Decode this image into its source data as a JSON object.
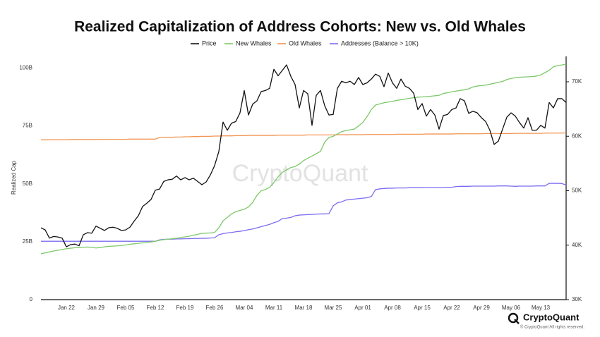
{
  "chart_data": {
    "type": "line",
    "title": "Realized Capitalization of Address Cohorts: New vs. Old Whales",
    "y_label": "Realized Cap",
    "watermark": "CryptoQuant",
    "brand": "CryptoQuant",
    "copyright": "© CryptoQuant All rights reserved.",
    "categories": [
      null,
      null,
      null,
      null,
      null,
      null,
      "Jan 22",
      null,
      null,
      null,
      null,
      null,
      null,
      "Jan 29",
      null,
      null,
      null,
      null,
      null,
      null,
      "Feb 05",
      null,
      null,
      null,
      null,
      null,
      null,
      "Feb 12",
      null,
      null,
      null,
      null,
      null,
      null,
      "Feb 19",
      null,
      null,
      null,
      null,
      null,
      null,
      "Feb 26",
      null,
      null,
      null,
      null,
      null,
      null,
      "Mar 04",
      null,
      null,
      null,
      null,
      null,
      null,
      "Mar 11",
      null,
      null,
      null,
      null,
      null,
      null,
      "Mar 18",
      null,
      null,
      null,
      null,
      null,
      null,
      "Mar 25",
      null,
      null,
      null,
      null,
      null,
      null,
      "Apr 01",
      null,
      null,
      null,
      null,
      null,
      null,
      "Apr 08",
      null,
      null,
      null,
      null,
      null,
      null,
      "Apr 15",
      null,
      null,
      null,
      null,
      null,
      null,
      "Apr 22",
      null,
      null,
      null,
      null,
      null,
      null,
      "Apr 29",
      null,
      null,
      null,
      null,
      null,
      null,
      "May 06",
      null,
      null,
      null,
      null,
      null,
      null,
      "May 13",
      null,
      null,
      null,
      null,
      null,
      null
    ],
    "ylim": [
      0,
      105
    ],
    "yticks": [
      0,
      {
        "value": 25,
        "label": "25B"
      },
      {
        "value": 50,
        "label": "50B"
      },
      {
        "value": 75,
        "label": "75B"
      },
      {
        "value": 100,
        "label": "100B"
      }
    ],
    "y2lim": [
      30000,
      74660
    ],
    "y2ticks": [
      {
        "value": 30000,
        "label": "30K"
      },
      {
        "value": 40000,
        "label": "40K"
      },
      {
        "value": 50000,
        "label": "50K"
      },
      {
        "value": 60000,
        "label": "60K"
      },
      {
        "value": 70000,
        "label": "70K"
      }
    ],
    "series": [
      {
        "name": "Price",
        "color": "#111111",
        "axis": "y2",
        "values": [
          43200,
          42800,
          41300,
          41600,
          41500,
          41300,
          39700,
          40100,
          40200,
          39900,
          41900,
          42300,
          42200,
          43500,
          43100,
          42700,
          43200,
          43300,
          43100,
          42700,
          42800,
          43300,
          44400,
          45400,
          47100,
          47700,
          48400,
          50100,
          50300,
          51700,
          52000,
          52100,
          52700,
          52000,
          52400,
          52000,
          52300,
          51700,
          51100,
          51600,
          52900,
          54600,
          57200,
          62600,
          61100,
          62400,
          62700,
          64300,
          68400,
          63900,
          65900,
          66500,
          68200,
          68400,
          68800,
          72300,
          71100,
          72100,
          73100,
          71000,
          69500,
          65200,
          68400,
          67800,
          62000,
          67500,
          68400,
          65600,
          63900,
          64000,
          68800,
          70100,
          69800,
          70100,
          69500,
          70800,
          69500,
          69800,
          70500,
          71400,
          71000,
          69100,
          71600,
          69800,
          68800,
          70500,
          69200,
          68800,
          67900,
          64900,
          66000,
          63700,
          64900,
          63900,
          61300,
          63800,
          64000,
          64900,
          65200,
          66900,
          66500,
          64200,
          64600,
          64300,
          63400,
          62700,
          61100,
          58500,
          59100,
          61300,
          63500,
          64300,
          63700,
          62500,
          61500,
          63400,
          61100,
          61100,
          62000,
          61500,
          66200,
          65200,
          66900,
          66900,
          66200
        ]
      },
      {
        "name": "New Whales",
        "color": "#7cc96a",
        "values": [
          19.8,
          20.2,
          20.6,
          21.0,
          21.3,
          21.6,
          22.0,
          22.2,
          22.4,
          22.5,
          22.6,
          22.7,
          22.6,
          22.3,
          22.5,
          22.8,
          23.0,
          23.1,
          23.2,
          23.4,
          23.6,
          23.9,
          24.1,
          24.3,
          24.5,
          24.7,
          24.9,
          25.2,
          25.6,
          25.9,
          26.1,
          26.3,
          26.5,
          26.8,
          27.1,
          27.4,
          27.8,
          28.2,
          28.6,
          28.7,
          28.8,
          29.0,
          31.0,
          34.0,
          35.5,
          37.0,
          38.0,
          38.5,
          39.0,
          40.0,
          42.0,
          45.0,
          47.0,
          47.5,
          48.5,
          50.5,
          53.0,
          55.0,
          56.0,
          57.0,
          57.5,
          58.5,
          60.0,
          61.0,
          62.0,
          63.0,
          64.0,
          68.0,
          70.0,
          70.5,
          71.5,
          72.5,
          73.0,
          73.3,
          73.6,
          75.0,
          76.5,
          79.0,
          82.0,
          84.0,
          84.5,
          85.0,
          85.3,
          85.6,
          86.0,
          86.3,
          86.6,
          86.9,
          87.2,
          87.4,
          87.5,
          87.6,
          87.8,
          88.0,
          88.2,
          89.0,
          89.3,
          89.7,
          90.0,
          90.3,
          90.6,
          91.0,
          91.8,
          92.2,
          92.4,
          92.6,
          93.0,
          93.4,
          93.8,
          94.2,
          95.0,
          95.5,
          95.8,
          96.0,
          96.1,
          96.2,
          96.3,
          96.5,
          97.0,
          98.0,
          99.0,
          100.5,
          101.0,
          101.3,
          101.6
        ]
      },
      {
        "name": "Old Whales",
        "color": "#f29552",
        "values": [
          69.0,
          69.0,
          69.0,
          69.0,
          69.0,
          69.0,
          69.0,
          69.1,
          69.1,
          69.1,
          69.1,
          69.1,
          69.1,
          69.1,
          69.2,
          69.2,
          69.2,
          69.2,
          69.2,
          69.2,
          69.2,
          69.3,
          69.3,
          69.3,
          69.3,
          69.3,
          69.3,
          69.3,
          70.0,
          70.0,
          70.1,
          70.1,
          70.2,
          70.2,
          70.3,
          70.3,
          70.4,
          70.4,
          70.5,
          70.5,
          70.5,
          70.6,
          70.6,
          70.7,
          70.7,
          70.7,
          70.8,
          70.8,
          70.8,
          70.9,
          70.9,
          70.9,
          70.9,
          70.9,
          70.9,
          70.9,
          71.0,
          71.0,
          71.0,
          71.0,
          71.0,
          71.0,
          71.0,
          71.1,
          71.1,
          71.1,
          71.1,
          71.1,
          71.1,
          71.1,
          71.2,
          71.2,
          71.2,
          71.2,
          71.2,
          71.2,
          71.2,
          71.3,
          71.3,
          71.3,
          71.3,
          71.3,
          71.3,
          71.3,
          71.4,
          71.4,
          71.4,
          71.4,
          71.4,
          71.4,
          71.4,
          71.5,
          71.5,
          71.5,
          71.5,
          71.5,
          71.5,
          71.5,
          71.6,
          71.6,
          71.6,
          71.6,
          71.6,
          71.6,
          71.6,
          71.7,
          71.7,
          71.7,
          71.7,
          71.7,
          71.7,
          71.7,
          71.8,
          71.8,
          71.8,
          71.8,
          71.8,
          71.8,
          71.8,
          71.9,
          71.9,
          71.9,
          71.9,
          71.9,
          72.0
        ]
      },
      {
        "name": "Addresses (Balance > 10K)",
        "color": "#7b6cf0",
        "values": [
          25.2,
          25.2,
          25.2,
          25.2,
          25.2,
          25.2,
          25.2,
          25.2,
          25.2,
          25.2,
          25.2,
          25.2,
          25.2,
          25.2,
          25.2,
          25.2,
          25.2,
          25.2,
          25.2,
          25.2,
          25.2,
          25.2,
          25.2,
          25.2,
          25.2,
          25.2,
          25.2,
          25.2,
          25.8,
          26.0,
          26.1,
          26.1,
          26.2,
          26.2,
          26.3,
          26.3,
          26.4,
          26.4,
          26.5,
          26.5,
          26.6,
          26.7,
          28.0,
          28.5,
          28.8,
          29.0,
          29.3,
          29.5,
          29.8,
          30.2,
          30.5,
          31.0,
          31.5,
          32.0,
          32.5,
          33.2,
          33.8,
          35.0,
          35.2,
          35.5,
          36.2,
          36.5,
          36.6,
          36.7,
          36.8,
          36.9,
          37.0,
          37.0,
          37.1,
          40.5,
          41.8,
          42.2,
          43.0,
          43.2,
          43.4,
          43.6,
          43.8,
          44.0,
          44.5,
          47.5,
          47.8,
          48.0,
          48.1,
          48.1,
          48.2,
          48.2,
          48.2,
          48.3,
          48.3,
          48.3,
          48.3,
          48.4,
          48.4,
          48.4,
          48.4,
          48.4,
          48.5,
          48.5,
          48.8,
          48.9,
          48.9,
          48.9,
          49.0,
          49.0,
          49.0,
          49.0,
          49.0,
          49.0,
          49.1,
          49.1,
          49.1,
          49.0,
          48.9,
          49.0,
          49.0,
          49.0,
          49.0,
          49.1,
          49.1,
          49.1,
          50.2,
          50.2,
          50.2,
          50.1,
          49.5
        ]
      }
    ]
  }
}
